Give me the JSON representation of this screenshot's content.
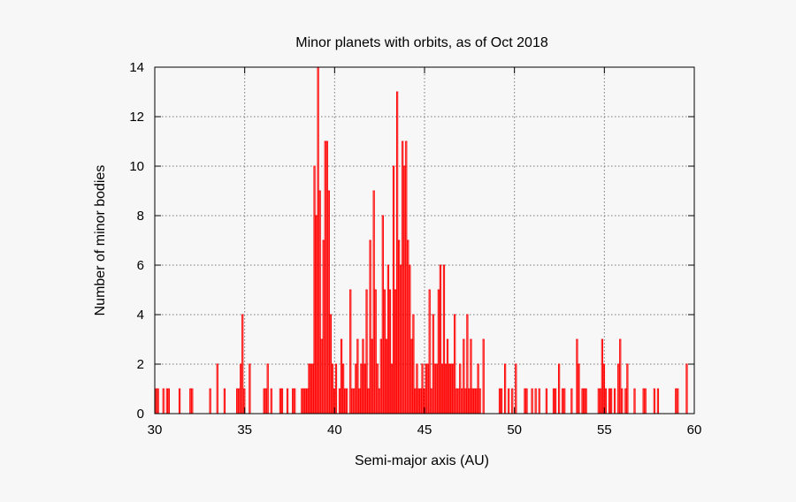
{
  "chart_data": {
    "type": "bar",
    "title": "Minor planets with orbits, as of Oct 2018",
    "xlabel": "Semi-major axis (AU)",
    "ylabel": "Number of minor bodies",
    "xlim": [
      30,
      60
    ],
    "ylim": [
      0,
      14
    ],
    "x_ticks": [
      30,
      35,
      40,
      45,
      50,
      55,
      60
    ],
    "y_ticks": [
      0,
      2,
      4,
      6,
      8,
      10,
      12,
      14
    ],
    "grid": true,
    "bar_width": 0.1,
    "color": "#ff0000",
    "bars": [
      [
        30.1,
        1
      ],
      [
        30.2,
        1
      ],
      [
        30.5,
        1
      ],
      [
        30.7,
        1
      ],
      [
        30.8,
        1
      ],
      [
        31.4,
        1
      ],
      [
        32.0,
        1
      ],
      [
        32.1,
        1
      ],
      [
        33.1,
        1
      ],
      [
        33.5,
        2
      ],
      [
        33.9,
        1
      ],
      [
        34.6,
        1
      ],
      [
        34.7,
        1
      ],
      [
        34.8,
        2
      ],
      [
        34.9,
        4
      ],
      [
        35.0,
        1
      ],
      [
        35.3,
        2
      ],
      [
        36.1,
        1
      ],
      [
        36.2,
        1
      ],
      [
        36.3,
        2
      ],
      [
        36.5,
        1
      ],
      [
        37.0,
        1
      ],
      [
        37.1,
        1
      ],
      [
        37.4,
        1
      ],
      [
        37.7,
        1
      ],
      [
        37.8,
        1
      ],
      [
        38.2,
        1
      ],
      [
        38.3,
        1
      ],
      [
        38.4,
        1
      ],
      [
        38.5,
        1
      ],
      [
        38.6,
        2
      ],
      [
        38.7,
        2
      ],
      [
        38.8,
        2
      ],
      [
        38.9,
        10
      ],
      [
        39.0,
        8
      ],
      [
        39.1,
        14
      ],
      [
        39.2,
        9
      ],
      [
        39.3,
        3
      ],
      [
        39.4,
        7
      ],
      [
        39.5,
        11
      ],
      [
        39.6,
        11
      ],
      [
        39.7,
        9
      ],
      [
        39.8,
        4
      ],
      [
        39.9,
        2
      ],
      [
        40.0,
        1
      ],
      [
        40.1,
        2
      ],
      [
        40.3,
        1
      ],
      [
        40.4,
        3
      ],
      [
        40.5,
        2
      ],
      [
        40.6,
        1
      ],
      [
        40.7,
        1
      ],
      [
        40.9,
        5
      ],
      [
        41.0,
        1
      ],
      [
        41.1,
        1
      ],
      [
        41.2,
        2
      ],
      [
        41.3,
        3
      ],
      [
        41.4,
        1
      ],
      [
        41.5,
        2
      ],
      [
        41.6,
        3
      ],
      [
        41.7,
        2
      ],
      [
        41.8,
        5
      ],
      [
        41.9,
        1
      ],
      [
        42.0,
        7
      ],
      [
        42.1,
        3
      ],
      [
        42.2,
        9
      ],
      [
        42.3,
        5
      ],
      [
        42.4,
        2
      ],
      [
        42.5,
        1
      ],
      [
        42.6,
        3
      ],
      [
        42.7,
        8
      ],
      [
        42.8,
        5
      ],
      [
        42.9,
        3
      ],
      [
        43.0,
        6
      ],
      [
        43.1,
        5
      ],
      [
        43.2,
        2
      ],
      [
        43.3,
        10
      ],
      [
        43.4,
        5
      ],
      [
        43.5,
        13
      ],
      [
        43.6,
        7
      ],
      [
        43.7,
        6
      ],
      [
        43.8,
        11
      ],
      [
        43.9,
        10
      ],
      [
        44.0,
        11
      ],
      [
        44.1,
        7
      ],
      [
        44.2,
        6
      ],
      [
        44.3,
        3
      ],
      [
        44.4,
        4
      ],
      [
        44.5,
        1
      ],
      [
        44.6,
        2
      ],
      [
        44.7,
        1
      ],
      [
        44.8,
        1
      ],
      [
        44.9,
        2
      ],
      [
        45.0,
        1
      ],
      [
        45.1,
        2
      ],
      [
        45.2,
        2
      ],
      [
        45.3,
        5
      ],
      [
        45.4,
        1
      ],
      [
        45.5,
        4
      ],
      [
        45.6,
        2
      ],
      [
        45.7,
        2
      ],
      [
        45.8,
        5
      ],
      [
        45.9,
        6
      ],
      [
        46.0,
        2
      ],
      [
        46.1,
        6
      ],
      [
        46.2,
        2
      ],
      [
        46.3,
        3
      ],
      [
        46.4,
        2
      ],
      [
        46.5,
        2
      ],
      [
        46.6,
        2
      ],
      [
        46.7,
        4
      ],
      [
        46.8,
        1
      ],
      [
        46.9,
        1
      ],
      [
        47.0,
        2
      ],
      [
        47.1,
        1
      ],
      [
        47.2,
        3
      ],
      [
        47.3,
        1
      ],
      [
        47.4,
        4
      ],
      [
        47.5,
        1
      ],
      [
        47.6,
        3
      ],
      [
        47.7,
        1
      ],
      [
        47.8,
        1
      ],
      [
        47.9,
        1
      ],
      [
        48.0,
        2
      ],
      [
        48.1,
        1
      ],
      [
        48.3,
        3
      ],
      [
        49.2,
        1
      ],
      [
        49.3,
        1
      ],
      [
        49.5,
        2
      ],
      [
        49.7,
        1
      ],
      [
        49.9,
        1
      ],
      [
        50.1,
        2
      ],
      [
        50.6,
        1
      ],
      [
        50.7,
        1
      ],
      [
        51.0,
        1
      ],
      [
        51.2,
        1
      ],
      [
        51.4,
        1
      ],
      [
        51.8,
        1
      ],
      [
        52.2,
        1
      ],
      [
        52.3,
        1
      ],
      [
        52.5,
        2
      ],
      [
        52.7,
        1
      ],
      [
        52.8,
        1
      ],
      [
        53.2,
        1
      ],
      [
        53.5,
        3
      ],
      [
        53.6,
        2
      ],
      [
        53.8,
        1
      ],
      [
        53.9,
        1
      ],
      [
        54.0,
        1
      ],
      [
        54.7,
        1
      ],
      [
        54.8,
        1
      ],
      [
        54.9,
        3
      ],
      [
        55.0,
        2
      ],
      [
        55.1,
        1
      ],
      [
        55.3,
        1
      ],
      [
        55.4,
        1
      ],
      [
        55.6,
        1
      ],
      [
        55.8,
        2
      ],
      [
        55.9,
        3
      ],
      [
        56.0,
        1
      ],
      [
        56.2,
        1
      ],
      [
        56.3,
        2
      ],
      [
        56.7,
        1
      ],
      [
        57.2,
        1
      ],
      [
        57.3,
        1
      ],
      [
        57.8,
        1
      ],
      [
        58.0,
        1
      ],
      [
        59.0,
        1
      ],
      [
        59.1,
        1
      ],
      [
        59.6,
        2
      ]
    ]
  }
}
